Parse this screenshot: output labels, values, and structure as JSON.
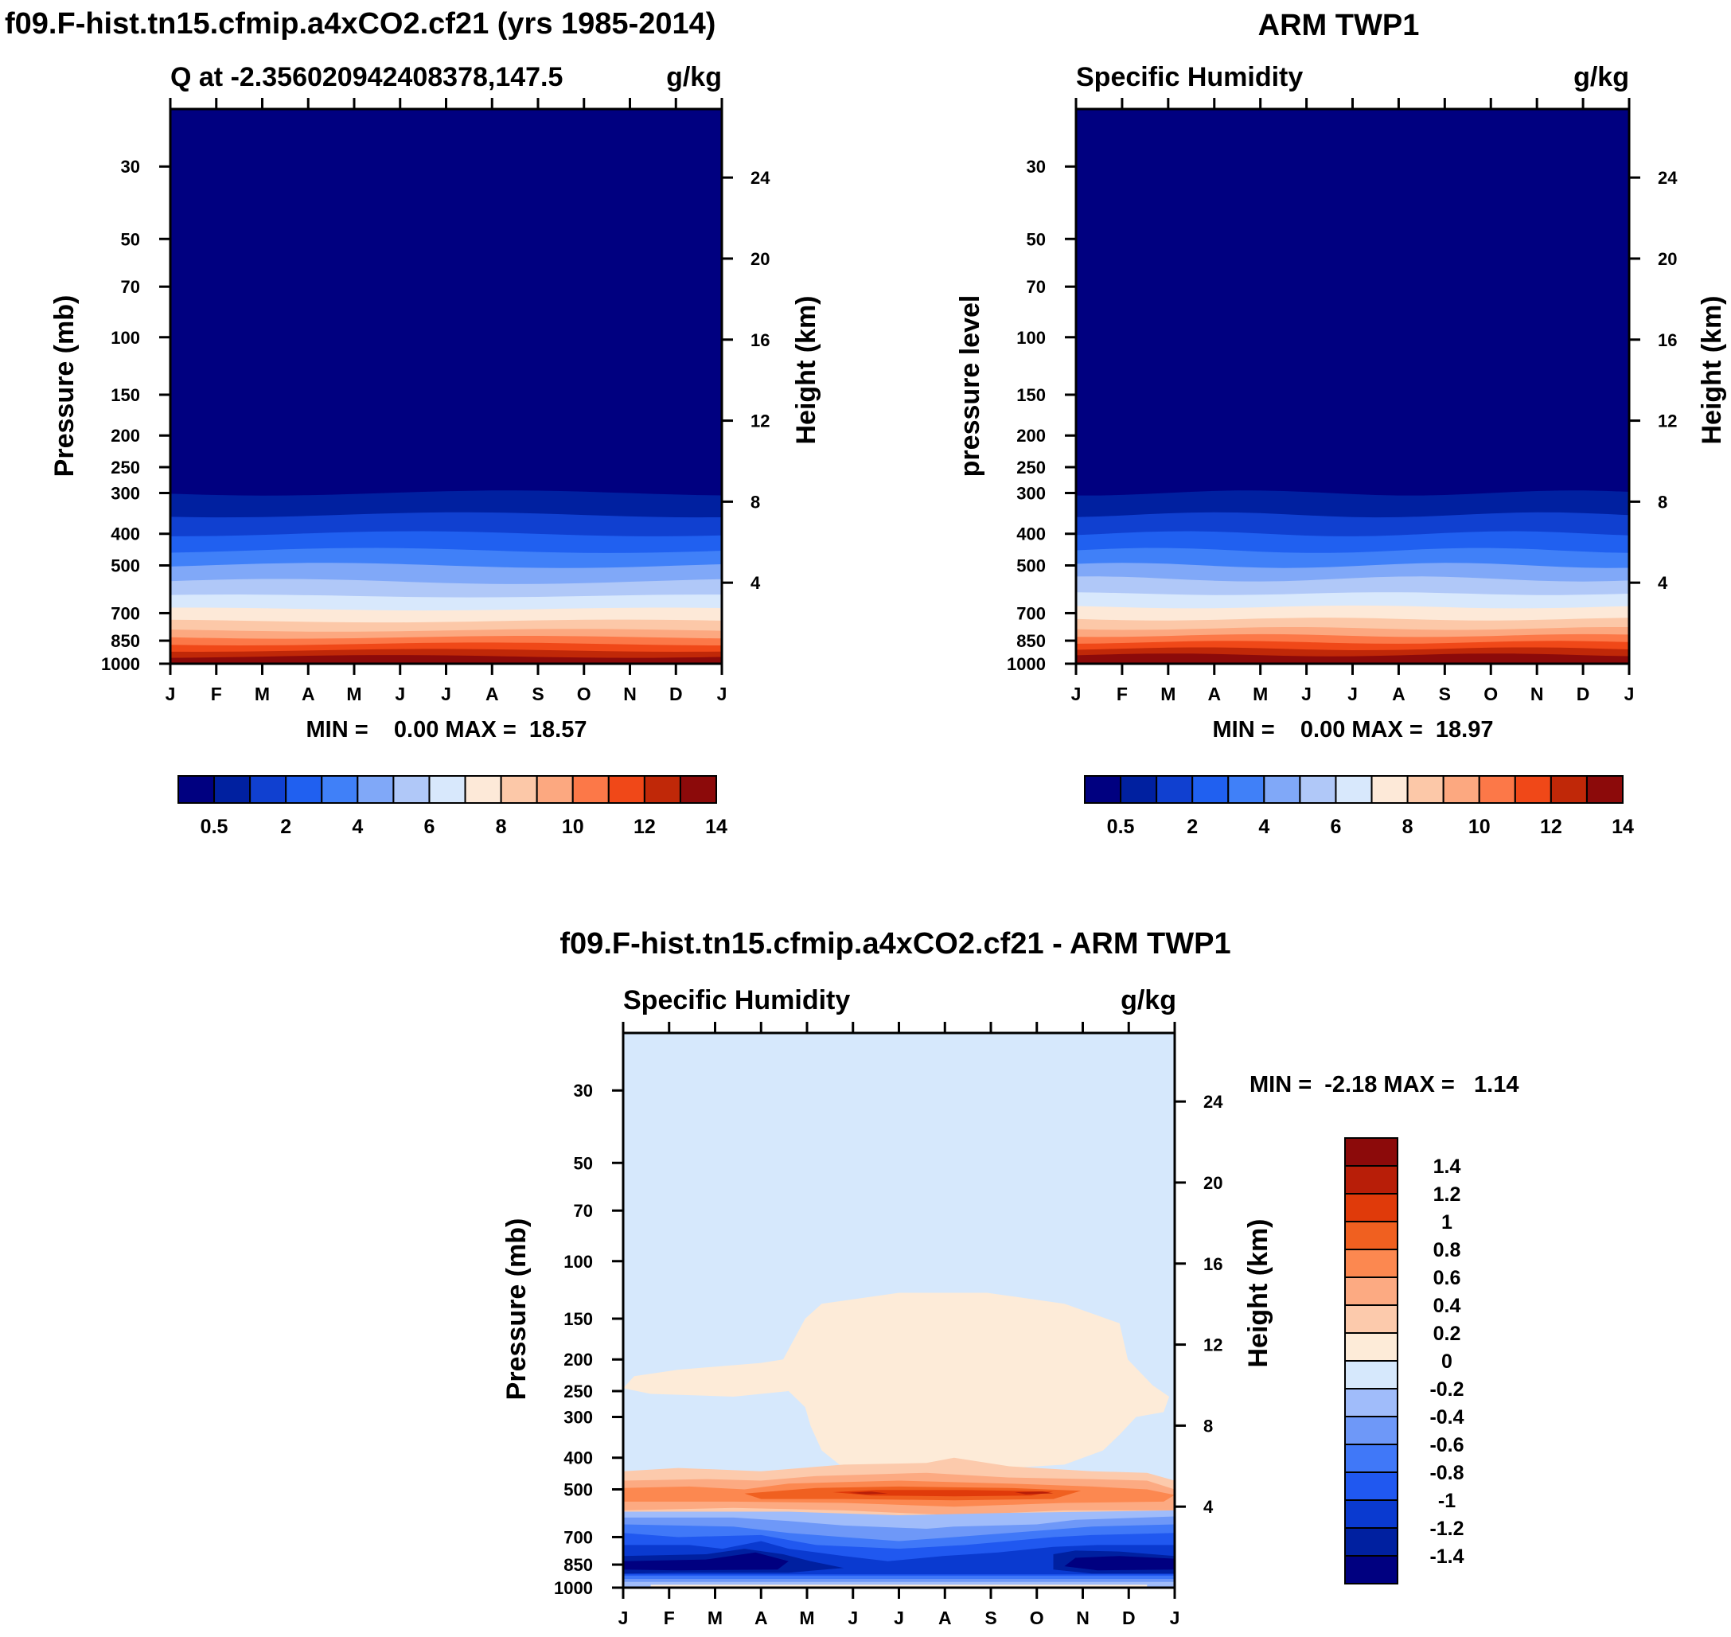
{
  "colors": {
    "abs_levels": [
      "#000080",
      "#0020a0",
      "#1040d0",
      "#2060f0",
      "#4080f8",
      "#80a8f8",
      "#b0c8f8",
      "#d8e8fc",
      "#fde9d8",
      "#fcc8a8",
      "#fca880",
      "#fc7848",
      "#f04818",
      "#c02808",
      "#8c0a0a"
    ],
    "diff_levels": [
      "#000080",
      "#0020a0",
      "#0a3ad0",
      "#2058f0",
      "#4078f8",
      "#6e98f8",
      "#a0bcfa",
      "#d6e8fc",
      "#fdebd8",
      "#fccaac",
      "#fcaa82",
      "#fc8850",
      "#f06020",
      "#e03a0a",
      "#b81e08",
      "#8c0a0a"
    ]
  },
  "panels": {
    "model": {
      "title": "f09.F-hist.tn15.cfmip.a4xCO2.cf21 (yrs 1985-2014)",
      "left_subtitle": "Q at -2.356020942408378,147.5",
      "right_subtitle": "g/kg",
      "ylabel": "Pressure (mb)",
      "ylabel_right": "Height (km)",
      "stats": "MIN =    0.00 MAX =  18.57"
    },
    "obs": {
      "title": "ARM TWP1",
      "left_subtitle": "Specific Humidity",
      "right_subtitle": "g/kg",
      "ylabel": "pressure level",
      "ylabel_right": "Height (km)",
      "stats": "MIN =    0.00 MAX =  18.97"
    },
    "diff": {
      "title": "f09.F-hist.tn15.cfmip.a4xCO2.cf21 - ARM TWP1",
      "left_subtitle": "Specific Humidity",
      "right_subtitle": "g/kg",
      "ylabel": "Pressure (mb)",
      "ylabel_right": "Height (km)",
      "stats": "MIN =  -2.18 MAX =   1.14"
    }
  },
  "chart_data": [
    {
      "type": "heatmap",
      "title": "f09.F-hist.tn15.cfmip.a4xCO2.cf21 (yrs 1985-2014)",
      "xlabel": "",
      "ylabel": "Pressure (mb)",
      "x_ticks": [
        "J",
        "F",
        "M",
        "A",
        "M",
        "J",
        "J",
        "A",
        "S",
        "O",
        "N",
        "D",
        "J"
      ],
      "y_ticks": [
        30,
        50,
        70,
        100,
        150,
        200,
        250,
        300,
        400,
        500,
        700,
        850,
        1000
      ],
      "y_right_ticks": [
        24,
        20,
        16,
        12,
        8,
        4
      ],
      "ylim": [
        1000,
        20
      ],
      "pressure_scale": "log",
      "units": "g/kg",
      "colorbar_labels": [
        "0.5",
        "2",
        "4",
        "6",
        "8",
        "10",
        "12",
        "14"
      ],
      "min": 0.0,
      "max": 18.57,
      "contour_band_pressures": [
        300,
        350,
        400,
        450,
        500,
        560,
        620,
        680,
        740,
        790,
        830,
        870,
        910,
        950,
        990
      ]
    },
    {
      "type": "heatmap",
      "title": "ARM TWP1",
      "xlabel": "",
      "ylabel": "pressure level",
      "x_ticks": [
        "J",
        "F",
        "M",
        "A",
        "M",
        "J",
        "J",
        "A",
        "S",
        "O",
        "N",
        "D",
        "J"
      ],
      "y_ticks": [
        30,
        50,
        70,
        100,
        150,
        200,
        250,
        300,
        400,
        500,
        700,
        850,
        1000
      ],
      "y_right_ticks": [
        24,
        20,
        16,
        12,
        8,
        4
      ],
      "ylim": [
        1000,
        20
      ],
      "pressure_scale": "log",
      "units": "g/kg",
      "colorbar_labels": [
        "0.5",
        "2",
        "4",
        "6",
        "8",
        "10",
        "12",
        "14"
      ],
      "min": 0.0,
      "max": 18.97,
      "contour_band_pressures": [
        300,
        350,
        400,
        450,
        500,
        550,
        610,
        670,
        730,
        780,
        820,
        860,
        900,
        940,
        980
      ]
    },
    {
      "type": "heatmap",
      "title": "f09.F-hist.tn15.cfmip.a4xCO2.cf21 - ARM TWP1",
      "xlabel": "",
      "ylabel": "Pressure (mb)",
      "x_ticks": [
        "J",
        "F",
        "M",
        "A",
        "M",
        "J",
        "J",
        "A",
        "S",
        "O",
        "N",
        "D",
        "J"
      ],
      "y_ticks": [
        30,
        50,
        70,
        100,
        150,
        200,
        250,
        300,
        400,
        500,
        700,
        850,
        1000
      ],
      "y_right_ticks": [
        24,
        20,
        16,
        12,
        8,
        4
      ],
      "ylim": [
        1000,
        20
      ],
      "pressure_scale": "log",
      "units": "g/kg",
      "colorbar_labels": [
        "1.4",
        "1.2",
        "1",
        "0.8",
        "0.6",
        "0.4",
        "0.2",
        "0",
        "-0.2",
        "-0.4",
        "-0.6",
        "-0.8",
        "-1",
        "-1.2",
        "-1.4"
      ],
      "min": -2.18,
      "max": 1.14
    }
  ]
}
